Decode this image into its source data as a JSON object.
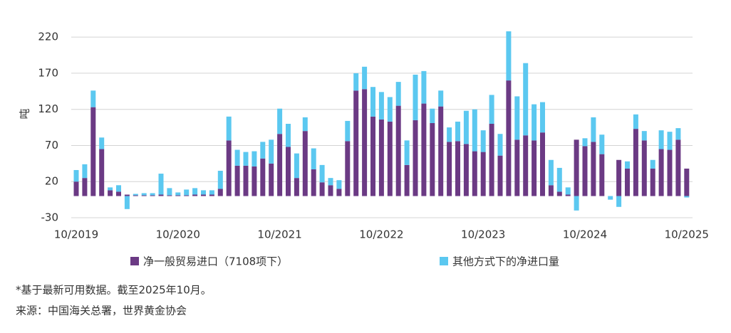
{
  "chart_data": {
    "type": "stacked_bar",
    "y_label": "吨",
    "categories": [
      "10/2019",
      null,
      null,
      null,
      null,
      null,
      null,
      null,
      null,
      null,
      null,
      null,
      "10/2020",
      null,
      null,
      null,
      null,
      null,
      null,
      null,
      null,
      null,
      null,
      null,
      "10/2021",
      null,
      null,
      null,
      null,
      null,
      null,
      null,
      null,
      null,
      null,
      null,
      "10/2022",
      null,
      null,
      null,
      null,
      null,
      null,
      null,
      null,
      null,
      null,
      null,
      "10/2023",
      null,
      null,
      null,
      null,
      null,
      null,
      null,
      null,
      null,
      null,
      null,
      "10/2024",
      null,
      null,
      null,
      null,
      null,
      null,
      null,
      null,
      null,
      null,
      null,
      "10/2025"
    ],
    "series": [
      {
        "name": "净一般贸易进口（7108项下）",
        "color": "#6b3a84",
        "values": [
          20,
          25,
          123,
          65,
          8,
          6,
          2,
          1,
          1,
          1,
          2,
          1,
          1,
          1,
          2,
          2,
          2,
          10,
          77,
          42,
          42,
          41,
          52,
          45,
          86,
          68,
          25,
          90,
          37,
          19,
          15,
          10,
          76,
          146,
          148,
          110,
          106,
          103,
          125,
          43,
          105,
          128,
          101,
          124,
          75,
          76,
          72,
          62,
          61,
          100,
          56,
          160,
          78,
          84,
          77,
          88,
          15,
          6,
          2,
          78,
          69,
          75,
          58,
          0,
          50,
          38,
          93,
          77,
          38,
          65,
          64,
          78,
          38
        ]
      },
      {
        "name": "其他方式下的净进口量",
        "color": "#5bc8f0",
        "values": [
          16,
          19,
          23,
          16,
          4,
          9,
          -18,
          2,
          3,
          3,
          29,
          10,
          4,
          8,
          9,
          6,
          6,
          25,
          33,
          22,
          19,
          21,
          23,
          33,
          35,
          32,
          34,
          19,
          29,
          24,
          10,
          12,
          28,
          24,
          31,
          41,
          38,
          34,
          33,
          34,
          63,
          45,
          20,
          22,
          20,
          27,
          46,
          58,
          30,
          40,
          30,
          68,
          60,
          100,
          50,
          42,
          35,
          33,
          10,
          -20,
          11,
          34,
          27,
          -5,
          -15,
          10,
          20,
          13,
          12,
          26,
          25,
          16,
          -2
        ]
      }
    ],
    "ylim": [
      -30,
      230
    ],
    "yticks": [
      -30,
      20,
      70,
      120,
      170,
      220
    ],
    "grid": true
  },
  "footnotes": [
    "*基于最新可用数据。截至2025年10月。",
    "来源：中国海关总署，世界黄金协会"
  ]
}
